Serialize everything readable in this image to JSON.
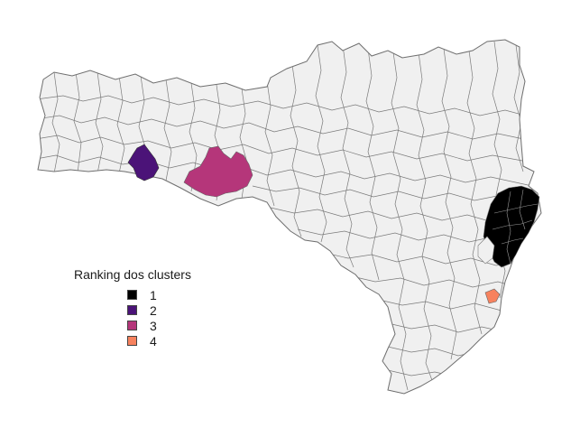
{
  "legend": {
    "title": "Ranking dos clusters",
    "items": [
      {
        "label": "1",
        "color": "#000000"
      },
      {
        "label": "2",
        "color": "#4b1378"
      },
      {
        "label": "3",
        "color": "#b5367a"
      },
      {
        "label": "4",
        "color": "#f7825e"
      }
    ]
  },
  "colors": {
    "background": "#ffffff",
    "municipality_fill": "#f0f0f0",
    "municipality_border": "#7a7a7a"
  }
}
